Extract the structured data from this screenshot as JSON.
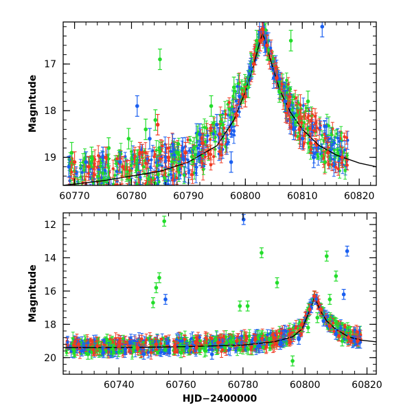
{
  "chart_data": [
    {
      "type": "scatter",
      "panel": "top",
      "title": "",
      "xlabel": "",
      "ylabel": "Magnitude",
      "xlim": [
        60768,
        60823
      ],
      "ylim": [
        19.6,
        16.1
      ],
      "y_inverted": true,
      "x_ticks": [
        60770,
        60780,
        60790,
        60800,
        60810,
        60820
      ],
      "x_tick_labels": [
        "60770",
        "60780",
        "60790",
        "60800",
        "60810",
        "60820"
      ],
      "y_ticks": [
        17,
        18,
        19
      ],
      "y_tick_labels": [
        "17",
        "18",
        "19"
      ],
      "grid": false,
      "legend": "none",
      "series": [
        {
          "color": "#1a5ff0",
          "x": [
            60769,
            60772,
            60775,
            60778,
            60781,
            60783.2,
            60786,
            60789,
            60792,
            60795,
            60797.5,
            60799,
            60801,
            60802.5,
            60803.5,
            60805,
            60807,
            60808.5,
            60810,
            60812,
            60813.5
          ],
          "y": [
            19.2,
            19.1,
            19.0,
            19.1,
            17.9,
            18.6,
            19.0,
            18.8,
            18.5,
            18.3,
            19.1,
            17.7,
            17.1,
            16.3,
            16.6,
            17.3,
            17.8,
            18.4,
            18.6,
            19.0,
            16.2
          ]
        },
        {
          "color": "#22dd2a",
          "x": [
            60769.5,
            60773,
            60776,
            60779.5,
            60782.5,
            60784.2,
            60785,
            60788,
            60791,
            60794,
            60796,
            60798,
            60800.5,
            60802,
            60804,
            60806,
            60808,
            60809,
            60811,
            60814
          ],
          "y": [
            18.9,
            19.0,
            18.8,
            18.6,
            18.4,
            18.2,
            16.9,
            18.9,
            18.8,
            17.9,
            18.3,
            17.5,
            17.5,
            16.5,
            16.7,
            17.6,
            16.5,
            18.1,
            17.8,
            19.1
          ]
        },
        {
          "color": "#f03a22",
          "x": [
            60770,
            60772.5,
            60775.5,
            60778.5,
            60781.5,
            60784.6,
            60786.5,
            60789.5,
            60792.5,
            60795.5,
            60798.5,
            60800,
            60801.5,
            60802.6,
            60803,
            60803.8,
            60805.5,
            60807.5,
            60809.5,
            60811.5,
            60814.5,
            60817
          ],
          "y": [
            19.1,
            19.2,
            19.0,
            19.2,
            18.9,
            18.3,
            19.0,
            18.9,
            18.7,
            18.5,
            18.1,
            17.7,
            17.0,
            16.5,
            16.25,
            16.6,
            17.3,
            17.9,
            18.4,
            18.7,
            18.9,
            19.0
          ]
        }
      ],
      "model_curve": {
        "color": "#000000",
        "x": [
          60768,
          60775,
          60780,
          60785,
          60790,
          60795,
          60798,
          60800,
          60801.5,
          60802.5,
          60803,
          60803.5,
          60804.5,
          60806,
          60808,
          60810,
          60813,
          60816,
          60820,
          60823
        ],
        "y": [
          19.6,
          19.5,
          19.4,
          19.3,
          19.1,
          18.75,
          18.2,
          17.6,
          17.0,
          16.55,
          16.35,
          16.5,
          16.95,
          17.55,
          18.05,
          18.4,
          18.75,
          18.95,
          19.12,
          19.2
        ]
      }
    },
    {
      "type": "scatter",
      "panel": "bottom",
      "title": "",
      "xlabel": "HJD−2400000",
      "ylabel": "Magnitude",
      "xlim": [
        60722,
        60823
      ],
      "ylim": [
        21.0,
        11.3
      ],
      "y_inverted": true,
      "x_ticks": [
        60740,
        60760,
        60780,
        60800,
        60820
      ],
      "x_tick_labels": [
        "60740",
        "60760",
        "60780",
        "60800",
        "60820"
      ],
      "y_ticks": [
        12,
        14,
        16,
        18,
        20
      ],
      "y_tick_labels": [
        "12",
        "14",
        "16",
        "18",
        "20"
      ],
      "grid": false,
      "legend": "none",
      "series": [
        {
          "color": "#1a5ff0",
          "x": [
            60728,
            60735,
            60742,
            60748,
            60755,
            60762,
            60770,
            60778,
            60780.2,
            60785,
            60792,
            60798,
            60802,
            60803.5,
            60806,
            60810,
            60812.5,
            60813.6,
            60816
          ],
          "y": [
            19.6,
            19.7,
            19.5,
            19.8,
            16.5,
            19.4,
            19.8,
            19.1,
            11.7,
            19.3,
            19.2,
            18.9,
            17.0,
            16.5,
            17.8,
            18.6,
            16.2,
            13.6,
            19.0
          ]
        },
        {
          "color": "#22dd2a",
          "x": [
            60730,
            60738,
            60745,
            60751,
            60752,
            60753,
            60754.6,
            60760,
            60768,
            60776,
            60779,
            60781.5,
            60786,
            60791,
            60796,
            60801,
            60804,
            60807,
            60808,
            60810,
            60812
          ],
          "y": [
            19.8,
            19.5,
            19.4,
            16.7,
            15.8,
            15.2,
            11.8,
            19.7,
            19.6,
            19.0,
            16.9,
            16.9,
            13.7,
            15.5,
            20.2,
            18.2,
            17.6,
            13.9,
            16.5,
            15.1,
            19.0
          ]
        },
        {
          "color": "#f03a22",
          "x": [
            60727,
            60733,
            60740,
            60746,
            60752,
            60758,
            60765,
            60772,
            60778,
            60784,
            60790,
            60795,
            60799,
            60801.5,
            60803,
            60805,
            60808,
            60811,
            60814,
            60817
          ],
          "y": [
            19.2,
            19.3,
            19.1,
            19.4,
            19.2,
            19.3,
            19.4,
            19.1,
            19.0,
            18.9,
            18.8,
            18.6,
            18.0,
            17.1,
            16.3,
            17.1,
            18.1,
            18.7,
            18.8,
            19.0
          ]
        }
      ],
      "model_curve": {
        "color": "#000000",
        "x": [
          60722,
          60740,
          60760,
          60780,
          60790,
          60796,
          60799,
          60801,
          60802.5,
          60803,
          60803.6,
          60805,
          60807,
          60810,
          60814,
          60818,
          60823
        ],
        "y": [
          19.4,
          19.4,
          19.35,
          19.25,
          19.05,
          18.75,
          18.3,
          17.4,
          16.7,
          16.4,
          16.6,
          17.2,
          17.8,
          18.3,
          18.75,
          18.95,
          19.05
        ]
      }
    }
  ]
}
